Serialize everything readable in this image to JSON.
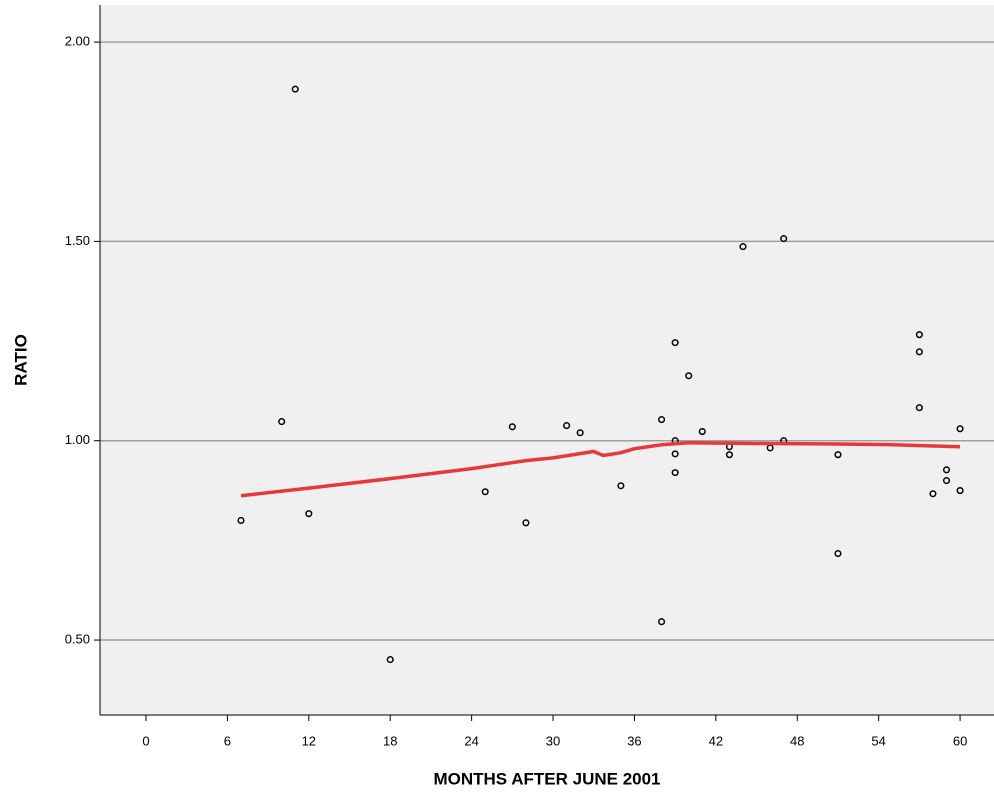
{
  "chart_data": {
    "type": "scatter",
    "xlabel": "MONTHS AFTER JUNE 2001",
    "ylabel": "RATIO",
    "x": [
      7,
      10,
      11,
      12,
      18,
      25,
      27,
      28,
      31,
      32,
      35,
      38,
      38,
      39,
      39,
      39,
      39,
      40,
      41,
      43,
      43,
      44,
      46,
      47,
      47,
      51,
      51,
      57,
      57,
      57,
      58,
      59,
      59,
      60,
      60
    ],
    "values": [
      0.8,
      1.048,
      1.882,
      0.817,
      0.451,
      0.872,
      1.035,
      0.794,
      1.038,
      1.02,
      0.887,
      1.053,
      0.546,
      1.246,
      1.0,
      0.967,
      0.92,
      1.163,
      1.023,
      0.985,
      0.965,
      1.487,
      0.982,
      1.507,
      1.0,
      0.965,
      0.717,
      1.266,
      1.223,
      1.083,
      0.867,
      0.927,
      0.9,
      1.03,
      0.875
    ],
    "color": "#000000",
    "fit": {
      "x": [
        7,
        12,
        18,
        24,
        28,
        30,
        33,
        33.7,
        35,
        36,
        38,
        40,
        45,
        50,
        55,
        60
      ],
      "values": [
        0.862,
        0.881,
        0.905,
        0.93,
        0.95,
        0.957,
        0.973,
        0.963,
        0.97,
        0.98,
        0.99,
        0.995,
        0.993,
        0.992,
        0.99,
        0.985
      ],
      "color": "#e8393a"
    },
    "xlim": [
      -3.39,
      62.5
    ],
    "ylim": [
      0.312,
      2.093
    ],
    "xticks": [
      0,
      6,
      12,
      18,
      24,
      30,
      36,
      42,
      48,
      54,
      60
    ],
    "yticks": [
      {
        "value": 0.5,
        "label": "0.50"
      },
      {
        "value": 1,
        "label": "1.00"
      },
      {
        "value": 1.5,
        "label": "1.50"
      },
      {
        "value": 2,
        "label": "2.00"
      }
    ],
    "grid": true
  }
}
